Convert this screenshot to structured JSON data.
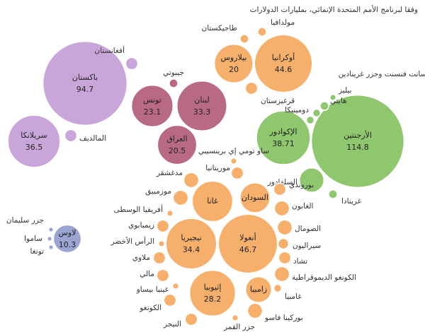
{
  "chart_data": {
    "type": "bubble",
    "subtitle": "وفقا لبرنامج الأمم المتحدة الإنمائي، بمليارات الدولارات",
    "groups": [
      {
        "color": "#c9a6d9",
        "labels": [
          "باكستان",
          "سريلانكا",
          "أفغانستان",
          "المالديف"
        ],
        "values": [
          94.7,
          36.5,
          2,
          2
        ],
        "value_labels": [
          "94.7",
          "36.5",
          null,
          null
        ]
      },
      {
        "color": "#b86a82",
        "labels": [
          "لبنان",
          "تونس",
          "العراق",
          "جيبوتي"
        ],
        "values": [
          33.3,
          23.1,
          20.5,
          1
        ],
        "value_labels": [
          "33.3",
          "23.1",
          "20.5",
          null
        ]
      },
      {
        "color": "#f7b06c",
        "labels": [
          "أوكرانيا",
          "بيلاروس",
          "طاجيكستان",
          "مولدافيا",
          "قرغيزستان"
        ],
        "values": [
          44.6,
          20,
          1,
          1,
          2
        ],
        "value_labels": [
          "44.6",
          "20",
          null,
          null,
          null
        ]
      },
      {
        "color": "#8fc76f",
        "labels": [
          "الأرجنتين",
          "الإكوادور",
          "السلفادور",
          "غرينادا",
          "سانت فنسنت وجزر غرينادين",
          "بيليز",
          "هايتي",
          "دومينيكا"
        ],
        "values": [
          114.8,
          38.71,
          8,
          1,
          0.5,
          1,
          0.8,
          0.8
        ],
        "value_labels": [
          "114.8",
          "38.71",
          null,
          null,
          null,
          null,
          null,
          null
        ]
      },
      {
        "color": "#9aa6d1",
        "labels": [
          "لاوس",
          "جزر سليمان",
          "ساموا",
          "تونغا"
        ],
        "values": [
          10.3,
          0.3,
          0.3,
          0.3
        ],
        "value_labels": [
          "10.3",
          null,
          null,
          null
        ]
      },
      {
        "color": "#f7b06c",
        "labels": [
          "أنغولا",
          "نيجيريا",
          "إثيوبيا",
          "غانا",
          "السودان",
          "زامبيا",
          "موريتانيا",
          "ساو تومي إي برينسيبي",
          "بوروندي",
          "الغابون",
          "الصومال",
          "سيراليون",
          "تشاد",
          "الكونغو الديموقراطية",
          "غامبيا",
          "بوركينا فاسو",
          "جزر القمر",
          "النيجر",
          "الكونغو",
          "غينيا بيساو",
          "مالي",
          "ملاوي",
          "الرأس الأخضر",
          "زيمبابوي",
          "أفريقيا الوسطى",
          "موزمبيق",
          "مدغشقر"
        ],
        "values": [
          46.7,
          34.4,
          28.2,
          22,
          12,
          9,
          2,
          0.5,
          2,
          3,
          3,
          1.5,
          2,
          3,
          0.8,
          3,
          0.5,
          2,
          2,
          0.5,
          2,
          2,
          0.5,
          2,
          0.5,
          3,
          3
        ],
        "value_labels": [
          "46.7",
          "34.4",
          "28.2",
          null,
          null,
          null,
          null,
          null,
          null,
          null,
          null,
          null,
          null,
          null,
          null,
          null,
          null,
          null,
          null,
          null,
          null,
          null,
          null,
          null,
          null,
          null,
          null
        ]
      }
    ]
  }
}
